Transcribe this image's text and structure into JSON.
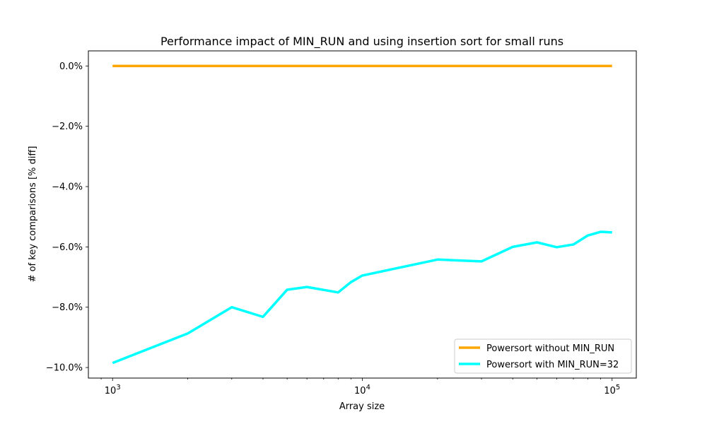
{
  "chart_data": {
    "type": "line",
    "title": "Performance impact of MIN_RUN and using insertion sort for small runs",
    "xlabel": "Array size",
    "ylabel": "# of key comparisons [% diff]",
    "x_scale": "log",
    "xlim": [
      800,
      125000
    ],
    "ylim": [
      -10.35,
      0.5
    ],
    "x_ticks": [
      {
        "value": 1000,
        "label": "10",
        "exp": "3"
      },
      {
        "value": 10000,
        "label": "10",
        "exp": "4"
      },
      {
        "value": 100000,
        "label": "10",
        "exp": "5"
      }
    ],
    "y_ticks": [
      {
        "value": 0,
        "label": "0.0%"
      },
      {
        "value": -2,
        "label": "−2.0%"
      },
      {
        "value": -4,
        "label": "−4.0%"
      },
      {
        "value": -6,
        "label": "−6.0%"
      },
      {
        "value": -8,
        "label": "−8.0%"
      },
      {
        "value": -10,
        "label": "−10.0%"
      }
    ],
    "grid": false,
    "legend_position": "lower-right",
    "series": [
      {
        "name": "Powersort without MIN_RUN",
        "color": "#ffa500",
        "x": [
          1000,
          2000,
          3000,
          4000,
          5000,
          6000,
          8000,
          9000,
          10000,
          20000,
          30000,
          40000,
          50000,
          60000,
          70000,
          80000,
          90000,
          100000
        ],
        "y": [
          0,
          0,
          0,
          0,
          0,
          0,
          0,
          0,
          0,
          0,
          0,
          0,
          0,
          0,
          0,
          0,
          0,
          0
        ]
      },
      {
        "name": "Powersort with MIN_RUN=32",
        "color": "#00ffff",
        "x": [
          1000,
          2000,
          3000,
          4000,
          5000,
          6000,
          8000,
          9000,
          10000,
          20000,
          30000,
          40000,
          50000,
          60000,
          70000,
          80000,
          90000,
          100000
        ],
        "y": [
          -9.85,
          -8.87,
          -8.0,
          -8.32,
          -7.42,
          -7.33,
          -7.51,
          -7.17,
          -6.95,
          -6.42,
          -6.48,
          -6.0,
          -5.85,
          -6.01,
          -5.92,
          -5.62,
          -5.5,
          -5.52
        ]
      }
    ]
  }
}
